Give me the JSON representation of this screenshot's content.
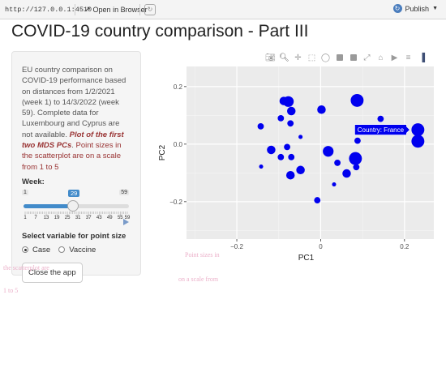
{
  "topbar": {
    "url": "http://127.0.0.1:4510",
    "open_in_browser": "Open in Browser",
    "publish": "Publish"
  },
  "page_title": "COVID-19 country comparison - Part III",
  "sidebar": {
    "description": "EU country comparison on COVID-19 performance based on distances from 1/2/2021 (week 1) to 14/3/2022 (week 59). Complete data for Luxembourg and Cyprus are not available.",
    "emphasis": "Plot of the first two MDS PCs",
    "emphasis_end": ".",
    "note": "Point sizes in the scatterplot are on a scale from 1 to 5",
    "week_label": "Week:",
    "week": {
      "min": "1",
      "max": "59",
      "value": "29",
      "ticks": [
        "1",
        "7",
        "13",
        "19",
        "25",
        "31",
        "37",
        "43",
        "49",
        "55",
        "59"
      ]
    },
    "size_label": "Select variable for point size",
    "options": [
      {
        "label": "Case",
        "selected": true
      },
      {
        "label": "Vaccine",
        "selected": false
      }
    ],
    "close_button": "Close the app"
  },
  "ghost_text": [
    "Point sizes in",
    "the scatterplot are",
    "on a scale from",
    "1 to 5"
  ],
  "icons": [
    "camera-icon",
    "zoom-icon",
    "pan-icon",
    "box-select-icon",
    "lasso-icon",
    "zoom-in-icon",
    "zoom-out-icon",
    "autoscale-icon",
    "home-icon",
    "hover-closest-icon",
    "hover-compare-icon",
    "plotly-logo-icon"
  ],
  "chart_data": {
    "type": "scatter",
    "xlabel": "PC1",
    "ylabel": "PC2",
    "xlim": [
      -0.32,
      0.27
    ],
    "ylim": [
      -0.33,
      0.27
    ],
    "xticks": [
      -0.2,
      0,
      0.2
    ],
    "yticks": [
      -0.2,
      0,
      0.2
    ],
    "xtick_labels": [
      "−0.2",
      "0",
      "0.2"
    ],
    "ytick_labels": [
      "−0.2",
      "0.0",
      "0.2"
    ],
    "color": "#0000ee",
    "points": [
      {
        "x": 0.087,
        "y": 0.152,
        "s": 5
      },
      {
        "x": -0.077,
        "y": 0.148,
        "s": 4
      },
      {
        "x": -0.088,
        "y": 0.15,
        "s": 3
      },
      {
        "x": 0.002,
        "y": 0.12,
        "s": 3
      },
      {
        "x": -0.07,
        "y": 0.115,
        "s": 3
      },
      {
        "x": -0.095,
        "y": 0.09,
        "s": 2
      },
      {
        "x": -0.143,
        "y": 0.062,
        "s": 2
      },
      {
        "x": 0.143,
        "y": 0.088,
        "s": 2
      },
      {
        "x": -0.072,
        "y": 0.072,
        "s": 2
      },
      {
        "x": 0.232,
        "y": 0.05,
        "s": 5
      },
      {
        "x": 0.232,
        "y": 0.01,
        "s": 5
      },
      {
        "x": 0.088,
        "y": 0.012,
        "s": 2
      },
      {
        "x": -0.048,
        "y": 0.025,
        "s": 1
      },
      {
        "x": -0.08,
        "y": -0.01,
        "s": 2
      },
      {
        "x": 0.018,
        "y": -0.025,
        "s": 4
      },
      {
        "x": 0.083,
        "y": -0.05,
        "s": 5
      },
      {
        "x": -0.118,
        "y": -0.02,
        "s": 3
      },
      {
        "x": -0.095,
        "y": -0.045,
        "s": 2
      },
      {
        "x": -0.07,
        "y": -0.045,
        "s": 2
      },
      {
        "x": 0.04,
        "y": -0.065,
        "s": 2
      },
      {
        "x": 0.085,
        "y": -0.08,
        "s": 2
      },
      {
        "x": -0.048,
        "y": -0.09,
        "s": 3
      },
      {
        "x": -0.142,
        "y": -0.078,
        "s": 1
      },
      {
        "x": -0.072,
        "y": -0.108,
        "s": 3
      },
      {
        "x": 0.062,
        "y": -0.102,
        "s": 3
      },
      {
        "x": 0.032,
        "y": -0.14,
        "s": 1
      },
      {
        "x": -0.008,
        "y": -0.195,
        "s": 2
      }
    ],
    "hover": {
      "text": "Country: France",
      "point_index": 9
    }
  }
}
